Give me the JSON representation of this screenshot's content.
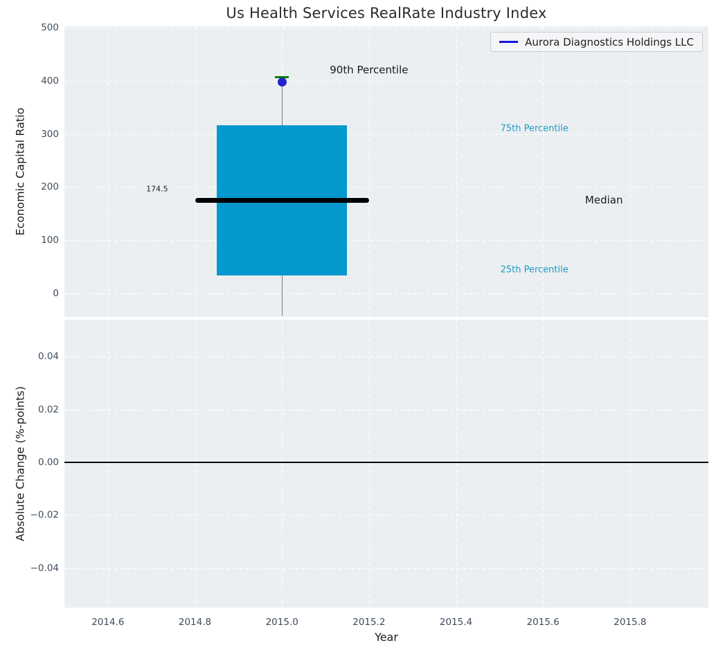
{
  "title": "Us Health Services RealRate Industry Index",
  "legend": {
    "label": "Aurora Diagnostics Holdings LLC",
    "line_color": "#1212e6"
  },
  "colors": {
    "plot_background": "#eceff1",
    "grid": "#ffffff",
    "tick_label": "#3c4c5c",
    "box_fill": "#0499ce",
    "median_line": "#000000",
    "whisker": "#777777",
    "whisker_cap": "#008000",
    "company_point": "#2424cc",
    "percentile_label": "#1b9ac8",
    "zero_line": "#000000"
  },
  "chart_data": {
    "type": "boxplot",
    "title": "Us Health Services RealRate Industry Index",
    "xlabel": "Year",
    "xlim": [
      2014.5,
      2015.98
    ],
    "xticks": {
      "values": [
        2014.6,
        2014.8,
        2015.0,
        2015.2,
        2015.4,
        2015.6,
        2015.8
      ],
      "labels": [
        "2014.6",
        "2014.8",
        "2015.0",
        "2015.2",
        "2015.4",
        "2015.6",
        "2015.8"
      ]
    },
    "grid": "white-dashed",
    "legend_position": "upper-right",
    "subplots": [
      {
        "ylabel": "Economic Capital Ratio",
        "ylim": [
          -45,
          503
        ],
        "yticks": {
          "values": [
            500,
            400,
            300,
            200,
            100,
            0
          ],
          "labels": [
            "500",
            "400",
            "300",
            "200",
            "100",
            "0"
          ]
        },
        "box": {
          "year": 2015.0,
          "whisker_low": -43,
          "p25": 33,
          "median": 174.5,
          "p75": 317,
          "p90": 407,
          "box_left": 2014.85,
          "box_right": 2015.15,
          "median_left": 2014.8,
          "median_right": 2015.2
        },
        "company_point": {
          "name": "Aurora Diagnostics Holdings LLC",
          "x": 2015.0,
          "y": 398
        },
        "annotations": [
          {
            "text": "90th Percentile",
            "x": 2015.2,
            "y": 421,
            "color": "#1a1a1a",
            "size": 15
          },
          {
            "text": "75th Percentile",
            "x": 2015.58,
            "y": 310,
            "color": "#1b9ac8",
            "size": 13
          },
          {
            "text": "Median",
            "x": 2015.74,
            "y": 175,
            "color": "#1a1a1a",
            "size": 15
          },
          {
            "text": "25th Percentile",
            "x": 2015.58,
            "y": 44,
            "color": "#1b9ac8",
            "size": 13
          },
          {
            "text": "174.5",
            "x": 2014.713,
            "y": 196,
            "color": "#1a1a1a",
            "size": 11
          }
        ]
      },
      {
        "ylabel": "Absolute Change (%-points)",
        "ylim": [
          -0.055,
          0.054
        ],
        "yticks": {
          "values": [
            0.04,
            0.02,
            0.0,
            -0.02,
            -0.04
          ],
          "labels": [
            "0.04",
            "0.02",
            "0.00",
            "−0.02",
            "−0.04"
          ]
        },
        "zero_line": 0.0
      }
    ]
  }
}
